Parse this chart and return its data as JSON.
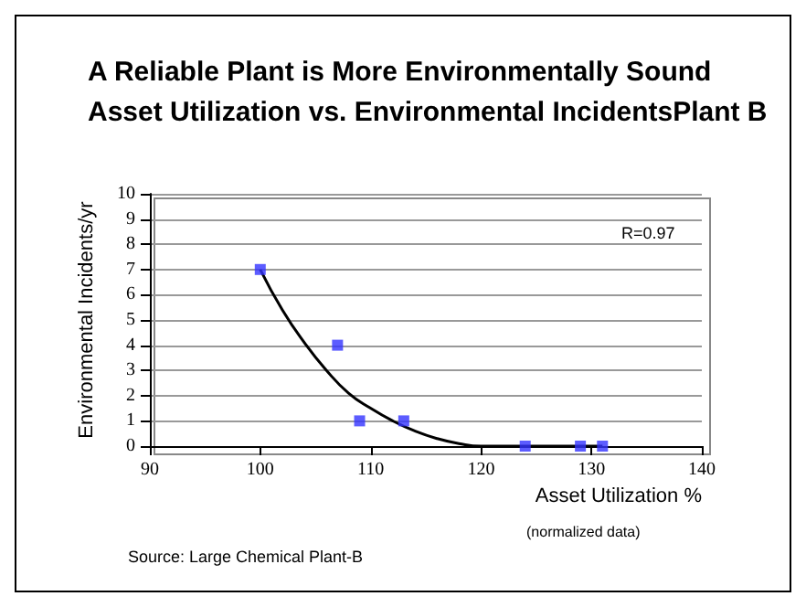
{
  "chart_data": {
    "type": "scatter",
    "title": "A Reliable Plant is More Environmentally Sound",
    "subtitle": "Asset Utilization vs. Environmental IncidentsPlant B",
    "xlabel": "Asset Utilization %",
    "ylabel": "Environmental Incidents/yr",
    "annotations": [
      "R=0.97",
      "(normalized data)",
      "Source: Large Chemical Plant-B"
    ],
    "series": [
      {
        "color": "#3333ff",
        "x": [
          100,
          107,
          109,
          113,
          124,
          129,
          131
        ],
        "values": [
          7,
          4,
          1,
          1,
          0,
          0,
          0
        ]
      },
      {
        "type": "line",
        "color": "#000000",
        "marker": "none",
        "x": [
          100,
          102,
          104,
          106,
          108,
          110,
          112,
          114,
          116,
          118,
          120,
          125,
          131
        ],
        "values": [
          7,
          5.4,
          4.1,
          3.0,
          2.1,
          1.5,
          1.0,
          0.6,
          0.3,
          0.1,
          0,
          0,
          0
        ]
      }
    ],
    "marker": "square",
    "xlim": [
      90,
      140
    ],
    "xticks": [
      90,
      100,
      110,
      120,
      130,
      140
    ],
    "ylim": [
      0,
      10
    ],
    "yticks": [
      0,
      1,
      2,
      3,
      4,
      5,
      6,
      7,
      8,
      9,
      10
    ],
    "grid": "y"
  }
}
